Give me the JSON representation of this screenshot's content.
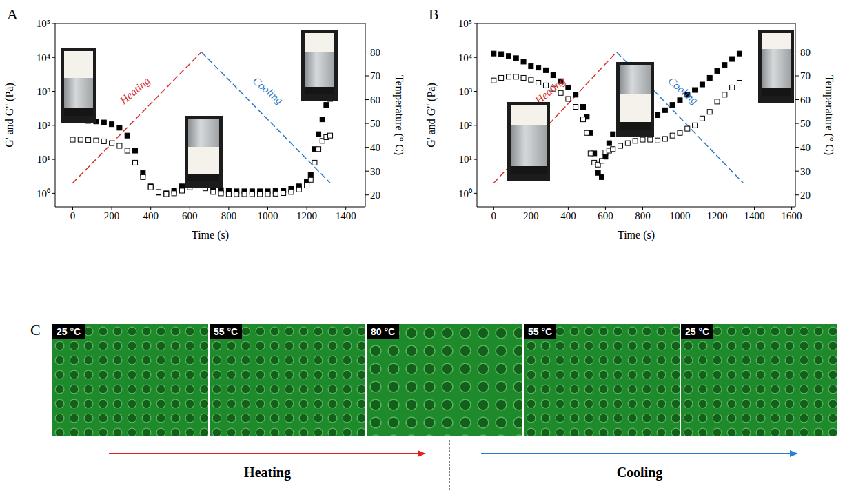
{
  "chart_data": [
    {
      "title": "A",
      "type": "line",
      "x_label": "Time (s)",
      "y_label": "G' and G'' (Pa)",
      "y2_label": "Temperature (° C)",
      "log": "y",
      "grid": false,
      "xlim": [
        -90,
        1500
      ],
      "xticks": [
        0,
        200,
        400,
        600,
        800,
        1000,
        1200,
        1400
      ],
      "ylim": [
        0.4,
        100000
      ],
      "yticks": [
        {
          "value": 1,
          "label": "10⁰"
        },
        {
          "value": 10,
          "label": "10¹"
        },
        {
          "value": 100,
          "label": "10²"
        },
        {
          "value": 1000,
          "label": "10³"
        },
        {
          "value": 10000,
          "label": "10⁴"
        },
        {
          "value": 100000,
          "label": "10⁵"
        }
      ],
      "y2lim": [
        15,
        92
      ],
      "y2ticks": [
        20,
        30,
        40,
        50,
        60,
        70,
        80
      ],
      "series": [
        {
          "type": "scatter",
          "color": "#000000",
          "marker": "square",
          "x": [
            0,
            40,
            80,
            120,
            160,
            200,
            240,
            280,
            320,
            360,
            400,
            440,
            480,
            520,
            560,
            600,
            640,
            680,
            720,
            760,
            800,
            840,
            880,
            920,
            960,
            1000,
            1040,
            1080,
            1120,
            1160,
            1200,
            1220,
            1240,
            1260,
            1280,
            1300,
            1320
          ],
          "values": [
            140,
            138,
            135,
            130,
            122,
            108,
            85,
            50,
            18,
            4,
            1.6,
            1.05,
            1,
            1.2,
            1.6,
            2.1,
            2.4,
            2,
            1.5,
            1.25,
            1.18,
            1.15,
            1.15,
            1.15,
            1.15,
            1.15,
            1.18,
            1.22,
            1.35,
            1.6,
            2.2,
            3.5,
            20,
            55,
            150,
            400,
            600
          ]
        },
        {
          "type": "scatter",
          "color": "#000000",
          "marker": "square-open",
          "x": [
            0,
            40,
            80,
            120,
            160,
            200,
            240,
            280,
            320,
            360,
            400,
            440,
            480,
            520,
            560,
            600,
            640,
            680,
            720,
            760,
            800,
            840,
            880,
            920,
            960,
            1000,
            1040,
            1080,
            1120,
            1160,
            1200,
            1220,
            1240,
            1260,
            1280,
            1300,
            1320
          ],
          "values": [
            38,
            38,
            37,
            36,
            34,
            30,
            25,
            18,
            8,
            3,
            1.5,
            1.1,
            0.95,
            1,
            1.2,
            1.5,
            1.7,
            1.4,
            1.1,
            1,
            0.95,
            0.95,
            0.95,
            0.95,
            0.95,
            0.95,
            0.98,
            1.02,
            1.1,
            1.3,
            1.7,
            2.5,
            8,
            20,
            35,
            45,
            50
          ]
        },
        {
          "type": "line",
          "name": "Heating",
          "color": "#d9302c",
          "line_style": "dashed",
          "marker": "none",
          "axis": "y2",
          "x": [
            0,
            660
          ],
          "values": [
            25,
            80
          ]
        },
        {
          "type": "line",
          "name": "Cooling",
          "color": "#2f78c4",
          "line_style": "dashed",
          "marker": "none",
          "axis": "y2",
          "x": [
            660,
            1320
          ],
          "values": [
            80,
            25
          ]
        }
      ]
    },
    {
      "title": "B",
      "type": "line",
      "x_label": "Time (s)",
      "y_label": "G' and G'' (Pa)",
      "y2_label": "Temperature (° C)",
      "log": "y",
      "grid": false,
      "xlim": [
        -90,
        1620
      ],
      "xticks": [
        0,
        200,
        400,
        600,
        800,
        1000,
        1200,
        1400,
        1600
      ],
      "ylim": [
        0.4,
        100000
      ],
      "yticks": [
        {
          "value": 1,
          "label": "10⁰"
        },
        {
          "value": 10,
          "label": "10¹"
        },
        {
          "value": 100,
          "label": "10²"
        },
        {
          "value": 1000,
          "label": "10³"
        },
        {
          "value": 10000,
          "label": "10⁴"
        },
        {
          "value": 100000,
          "label": "10⁵"
        }
      ],
      "y2lim": [
        15,
        92
      ],
      "y2ticks": [
        20,
        30,
        40,
        50,
        60,
        70,
        80
      ],
      "series": [
        {
          "type": "scatter",
          "color": "#000000",
          "marker": "square",
          "x": [
            0,
            40,
            80,
            120,
            160,
            200,
            240,
            280,
            320,
            360,
            400,
            440,
            480,
            500,
            520,
            540,
            560,
            580,
            600,
            620,
            640,
            680,
            720,
            760,
            800,
            840,
            880,
            920,
            960,
            1000,
            1040,
            1080,
            1120,
            1160,
            1200,
            1240,
            1280,
            1320
          ],
          "values": [
            13000,
            12500,
            11000,
            9500,
            7500,
            5500,
            5000,
            4200,
            3000,
            2000,
            1300,
            800,
            350,
            180,
            60,
            15,
            4,
            3,
            12,
            30,
            55,
            80,
            95,
            105,
            120,
            150,
            200,
            280,
            400,
            550,
            800,
            1100,
            1600,
            2500,
            4000,
            6000,
            9000,
            13000
          ]
        },
        {
          "type": "scatter",
          "color": "#000000",
          "marker": "square-open",
          "x": [
            0,
            40,
            80,
            120,
            160,
            200,
            240,
            280,
            320,
            360,
            400,
            440,
            480,
            500,
            520,
            540,
            560,
            580,
            600,
            620,
            640,
            680,
            720,
            760,
            800,
            840,
            880,
            920,
            960,
            1000,
            1040,
            1080,
            1120,
            1160,
            1200,
            1240,
            1280,
            1320
          ],
          "values": [
            2100,
            2500,
            2700,
            2700,
            2500,
            2200,
            1800,
            1500,
            1200,
            900,
            600,
            350,
            150,
            60,
            15,
            8,
            7,
            9,
            16,
            18,
            20,
            25,
            30,
            35,
            38,
            38,
            36,
            40,
            50,
            60,
            80,
            100,
            160,
            250,
            500,
            800,
            1300,
            1800
          ]
        },
        {
          "type": "line",
          "name": "Heating",
          "color": "#d9302c",
          "line_style": "dashed",
          "marker": "none",
          "axis": "y2",
          "x": [
            0,
            660
          ],
          "values": [
            25,
            80
          ]
        },
        {
          "type": "line",
          "name": "Cooling",
          "color": "#2f78c4",
          "line_style": "dashed",
          "marker": "none",
          "axis": "y2",
          "x": [
            660,
            1340
          ],
          "values": [
            80,
            25
          ]
        }
      ]
    }
  ],
  "micrographs": {
    "title": "C",
    "labels": [
      "25 °C",
      "55 °C",
      "80 °C",
      "55 °C",
      "25 °C"
    ],
    "arrows": [
      {
        "text": "Heating",
        "color": "#e0201c"
      },
      {
        "text": "Cooling",
        "color": "#2a7fd4"
      }
    ]
  }
}
